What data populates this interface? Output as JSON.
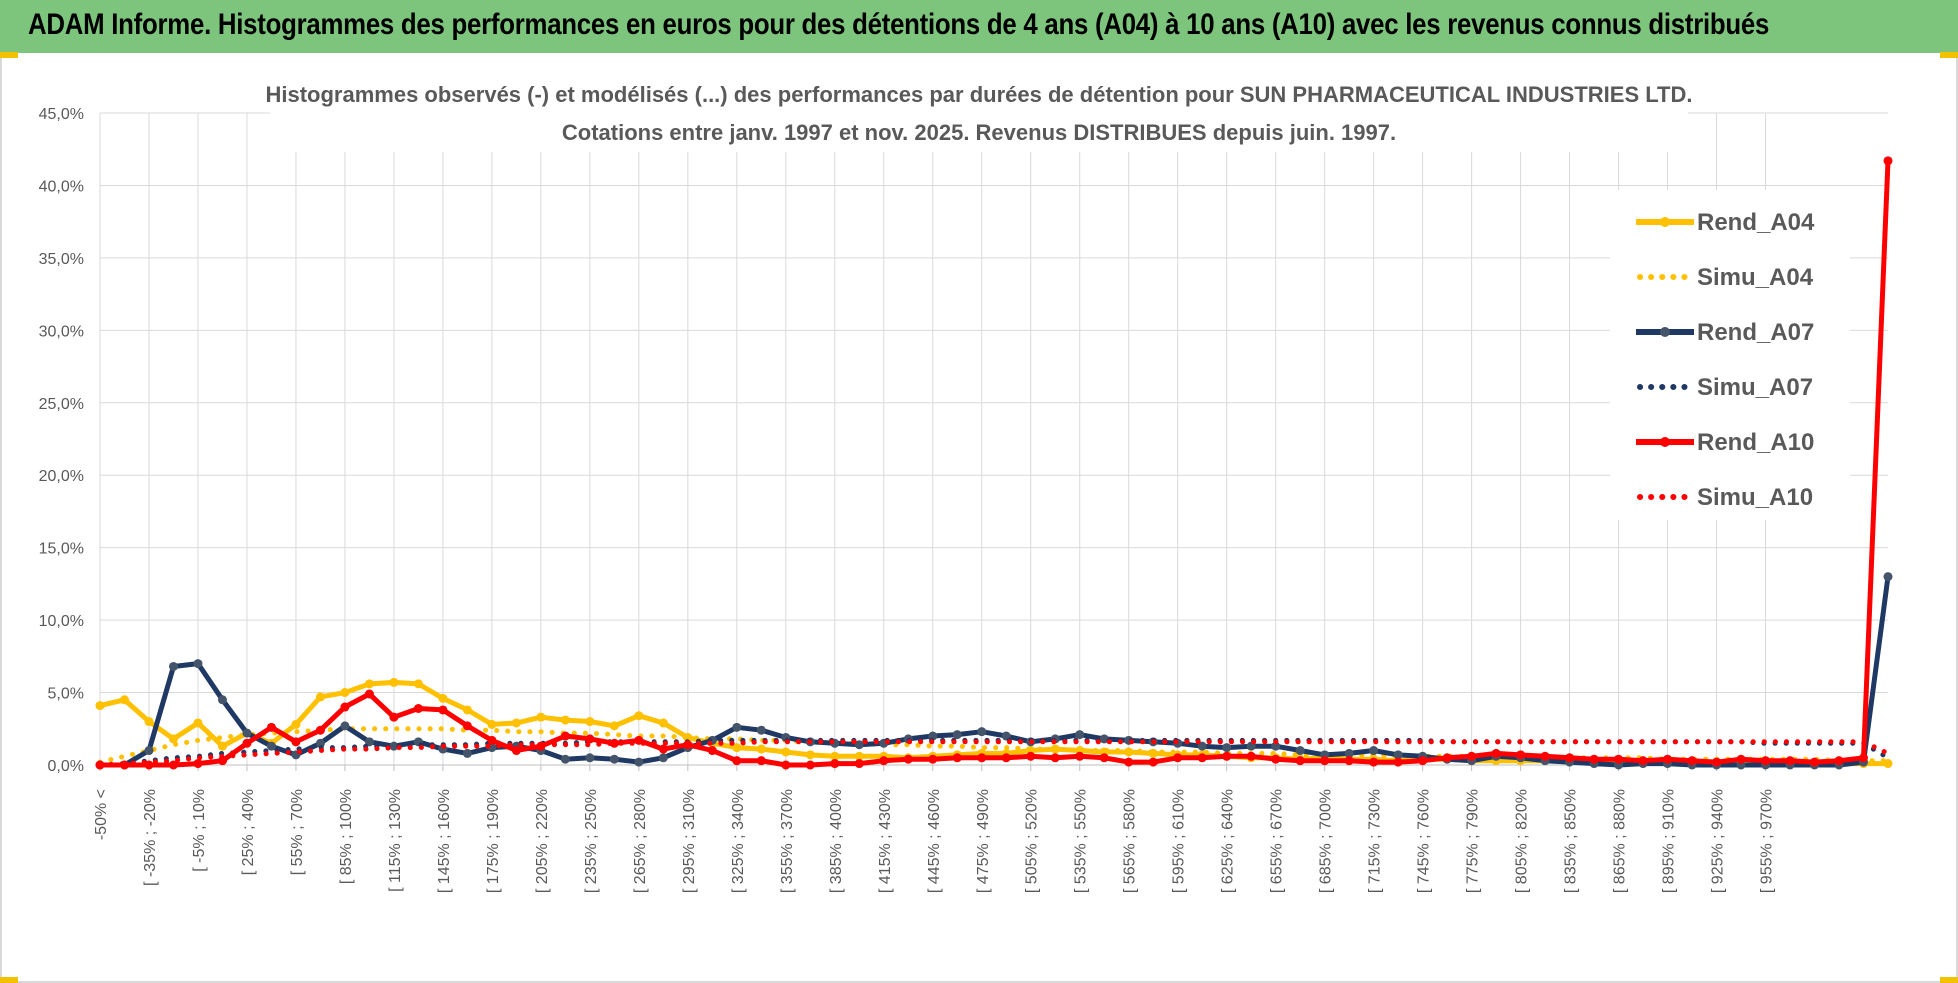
{
  "banner": {
    "title": "ADAM Informe. Histogrammes des performances en euros pour des détentions de 4 ans (A04) à 10 ans (A10) avec les revenus connus distribués",
    "background": "#7dc57d"
  },
  "chart_data": {
    "type": "line",
    "title_line1": "Histogrammes observés (-) et modélisés (...) des performances par durées de détention pour SUN PHARMACEUTICAL INDUSTRIES LTD.",
    "title_line2": "Cotations entre janv. 1997 et nov. 2025. Revenus DISTRIBUES depuis juin. 1997.",
    "ylim": [
      0,
      45
    ],
    "yticks": [
      "0,0%",
      "5,0%",
      "10,0%",
      "15,0%",
      "20,0%",
      "25,0%",
      "30,0%",
      "35,0%",
      "40,0%",
      "45,0%"
    ],
    "xlabels": [
      "-50% <",
      "[ -35% ; -20%",
      "[ -5% ; 10%",
      "[ 25% ; 40%",
      "[ 55% ; 70%",
      "[ 85% ; 100%",
      "[ 115% ; 130%",
      "[ 145% ; 160%",
      "[ 175% ; 190%",
      "[ 205% ; 220%",
      "[ 235% ; 250%",
      "[ 265% ; 280%",
      "[ 295% ; 310%",
      "[ 325% ; 340%",
      "[ 355% ; 370%",
      "[ 385% ; 400%",
      "[ 415% ; 430%",
      "[ 445% ; 460%",
      "[ 475% ; 490%",
      "[ 505% ; 520%",
      "[ 535% ; 550%",
      "[ 565% ; 580%",
      "[ 595% ; 610%",
      "[ 625% ; 640%",
      "[ 655% ; 670%",
      "[ 685% ; 700%",
      "[ 715% ; 730%",
      "[ 745% ; 760%",
      "[ 775% ; 790%",
      "[ 805% ; 820%",
      "[ 835% ; 850%",
      "[ 865% ; 880%",
      "[ 895% ; 910%",
      "[ 925% ; 940%",
      "[ 955% ; 970%"
    ],
    "series": [
      {
        "name": "Rend_A04",
        "color": "#ffc000",
        "style": "solid",
        "values": [
          4.1,
          4.5,
          3.0,
          1.8,
          2.9,
          1.3,
          2.2,
          1.5,
          2.8,
          4.7,
          5.0,
          5.6,
          5.7,
          5.6,
          4.6,
          3.8,
          2.8,
          2.9,
          3.3,
          3.1,
          3.0,
          2.7,
          3.4,
          2.9,
          1.9,
          1.5,
          1.2,
          1.1,
          0.9,
          0.7,
          0.6,
          0.6,
          0.6,
          0.5,
          0.6,
          0.7,
          0.8,
          0.8,
          1.0,
          1.1,
          1.0,
          0.9,
          0.9,
          0.8,
          0.7,
          0.7,
          0.6,
          0.5,
          0.5,
          0.4,
          0.5,
          0.4,
          0.4,
          0.3,
          0.4,
          0.4,
          0.3,
          0.3,
          0.3,
          0.3,
          0.3,
          0.2,
          0.2,
          0.2,
          0.2,
          0.2,
          0.2,
          0.1,
          0.2,
          0.1,
          0.1,
          0.1,
          0.1,
          0.1
        ]
      },
      {
        "name": "Simu_A04",
        "color": "#ffc000",
        "style": "dotted",
        "values": [
          0.2,
          0.6,
          1.0,
          1.4,
          1.7,
          1.9,
          2.1,
          2.2,
          2.3,
          2.4,
          2.5,
          2.5,
          2.5,
          2.5,
          2.5,
          2.4,
          2.4,
          2.3,
          2.3,
          2.2,
          2.2,
          2.1,
          2.0,
          2.0,
          1.9,
          1.8,
          1.8,
          1.7,
          1.7,
          1.6,
          1.5,
          1.5,
          1.4,
          1.4,
          1.3,
          1.3,
          1.2,
          1.2,
          1.1,
          1.1,
          1.0,
          1.0,
          1.0,
          0.9,
          0.9,
          0.9,
          0.8,
          0.8,
          0.8,
          0.7,
          0.7,
          0.7,
          0.7,
          0.6,
          0.6,
          0.6,
          0.6,
          0.6,
          0.5,
          0.5,
          0.5,
          0.5,
          0.5,
          0.5,
          0.4,
          0.4,
          0.4,
          0.4,
          0.4,
          0.4,
          0.4,
          0.3,
          0.3,
          0.3
        ]
      },
      {
        "name": "Rend_A07",
        "color": "#1f3864",
        "style": "solid",
        "values": [
          0.0,
          0.0,
          1.0,
          6.8,
          7.0,
          4.5,
          2.2,
          1.3,
          0.7,
          1.5,
          2.7,
          1.6,
          1.3,
          1.6,
          1.1,
          0.8,
          1.2,
          1.3,
          1.0,
          0.4,
          0.5,
          0.4,
          0.2,
          0.5,
          1.2,
          1.7,
          2.6,
          2.4,
          1.9,
          1.6,
          1.5,
          1.4,
          1.5,
          1.8,
          2.0,
          2.1,
          2.3,
          2.0,
          1.6,
          1.8,
          2.1,
          1.8,
          1.7,
          1.6,
          1.5,
          1.3,
          1.2,
          1.3,
          1.3,
          1.0,
          0.7,
          0.8,
          1.0,
          0.7,
          0.6,
          0.4,
          0.3,
          0.6,
          0.5,
          0.3,
          0.2,
          0.1,
          0.0,
          0.1,
          0.1,
          0.0,
          0.0,
          0.0,
          0.0,
          0.0,
          0.0,
          0.0,
          0.2,
          13.0
        ]
      },
      {
        "name": "Simu_A07",
        "color": "#1f3864",
        "style": "dotted",
        "values": [
          0.0,
          0.1,
          0.3,
          0.5,
          0.6,
          0.8,
          0.9,
          1.0,
          1.1,
          1.2,
          1.2,
          1.3,
          1.3,
          1.4,
          1.4,
          1.4,
          1.5,
          1.5,
          1.5,
          1.5,
          1.6,
          1.6,
          1.6,
          1.6,
          1.6,
          1.7,
          1.7,
          1.7,
          1.7,
          1.7,
          1.7,
          1.7,
          1.7,
          1.7,
          1.7,
          1.7,
          1.7,
          1.7,
          1.7,
          1.7,
          1.7,
          1.7,
          1.7,
          1.7,
          1.7,
          1.7,
          1.7,
          1.7,
          1.7,
          1.7,
          1.7,
          1.7,
          1.7,
          1.7,
          1.7,
          1.6,
          1.6,
          1.6,
          1.6,
          1.6,
          1.6,
          1.6,
          1.6,
          1.6,
          1.6,
          1.6,
          1.6,
          1.6,
          1.5,
          1.5,
          1.5,
          1.5,
          1.5,
          0.5
        ]
      },
      {
        "name": "Rend_A10",
        "color": "#ff0000",
        "style": "solid",
        "values": [
          0.0,
          0.0,
          0.0,
          0.0,
          0.1,
          0.3,
          1.5,
          2.6,
          1.6,
          2.4,
          4.0,
          4.9,
          3.3,
          3.9,
          3.8,
          2.7,
          1.7,
          1.0,
          1.3,
          2.0,
          1.8,
          1.5,
          1.7,
          1.1,
          1.4,
          1.0,
          0.3,
          0.3,
          0.0,
          0.0,
          0.1,
          0.1,
          0.3,
          0.4,
          0.4,
          0.5,
          0.5,
          0.5,
          0.6,
          0.5,
          0.6,
          0.5,
          0.2,
          0.2,
          0.5,
          0.5,
          0.6,
          0.6,
          0.4,
          0.3,
          0.3,
          0.3,
          0.2,
          0.2,
          0.3,
          0.5,
          0.6,
          0.8,
          0.7,
          0.6,
          0.5,
          0.4,
          0.4,
          0.3,
          0.4,
          0.3,
          0.2,
          0.4,
          0.3,
          0.3,
          0.2,
          0.3,
          0.5,
          41.7
        ]
      },
      {
        "name": "Simu_A10",
        "color": "#ff0000",
        "style": "dotted",
        "values": [
          0.0,
          0.1,
          0.2,
          0.3,
          0.5,
          0.6,
          0.7,
          0.8,
          0.9,
          1.0,
          1.1,
          1.1,
          1.2,
          1.2,
          1.3,
          1.3,
          1.3,
          1.4,
          1.4,
          1.4,
          1.4,
          1.5,
          1.5,
          1.5,
          1.5,
          1.5,
          1.5,
          1.6,
          1.6,
          1.6,
          1.6,
          1.6,
          1.6,
          1.6,
          1.6,
          1.6,
          1.6,
          1.6,
          1.6,
          1.6,
          1.6,
          1.6,
          1.6,
          1.6,
          1.6,
          1.6,
          1.6,
          1.6,
          1.6,
          1.6,
          1.6,
          1.6,
          1.6,
          1.6,
          1.6,
          1.6,
          1.6,
          1.6,
          1.6,
          1.6,
          1.6,
          1.6,
          1.6,
          1.6,
          1.6,
          1.6,
          1.6,
          1.6,
          1.6,
          1.6,
          1.6,
          1.6,
          1.6,
          0.8
        ]
      }
    ],
    "legend_position": "right",
    "grid": true
  }
}
